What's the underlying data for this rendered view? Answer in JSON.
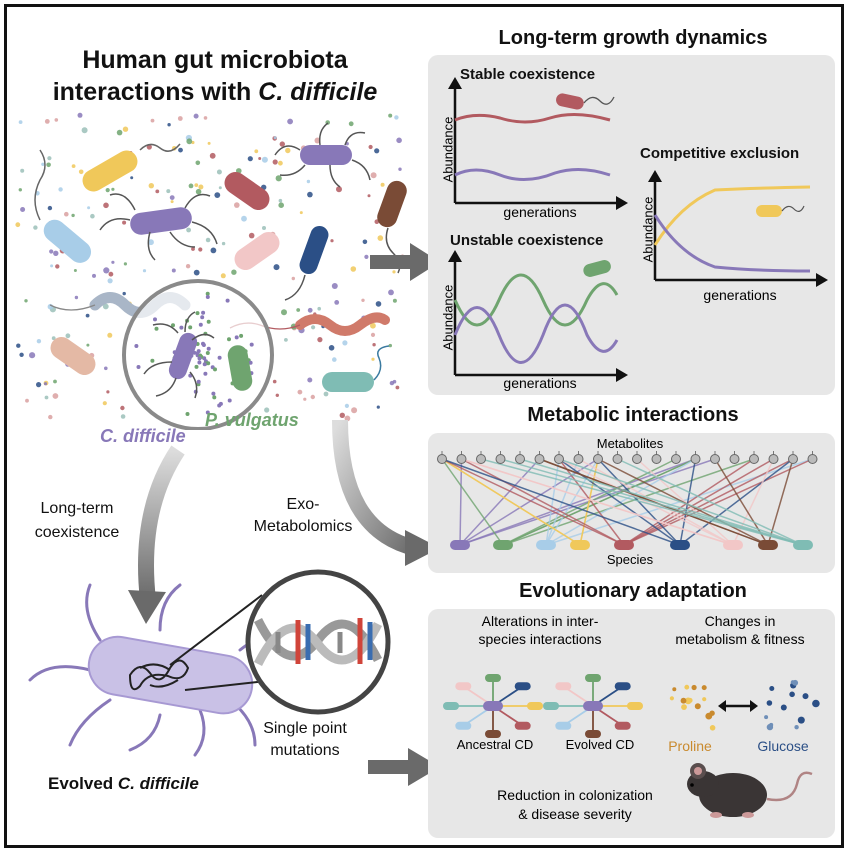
{
  "main_title": {
    "line1": "Human gut microbiota",
    "line2_prefix": "interactions with ",
    "line2_italic": "C. difficile"
  },
  "labels": {
    "c_difficile": "C. difficile",
    "p_vulgatus": "P. vulgatus",
    "long_term_coexistence_1": "Long-term",
    "long_term_coexistence_2": "coexistence",
    "exo_metabolomics_1": "Exo-",
    "exo_metabolomics_2": "Metabolomics",
    "evolved_prefix": "Evolved ",
    "evolved_italic": "C. difficile",
    "single_point_1": "Single point",
    "single_point_2": "mutations"
  },
  "growth_panel": {
    "title": "Long-term growth dynamics",
    "stable": {
      "title": "Stable coexistence",
      "ylabel": "Abundance",
      "xlabel": "generations"
    },
    "unstable": {
      "title": "Unstable coexistence",
      "ylabel": "Abundance",
      "xlabel": "generations"
    },
    "competitive": {
      "title": "Competitive exclusion",
      "ylabel": "Abundance",
      "xlabel": "generations"
    }
  },
  "metabolic_panel": {
    "title": "Metabolic interactions",
    "top_label": "Metabolites",
    "bottom_label": "Species"
  },
  "evolution_panel": {
    "title": "Evolutionary adaptation",
    "alterations_1": "Alterations in inter-",
    "alterations_2": "species interactions",
    "changes_1": "Changes in",
    "changes_2": "metabolism & fitness",
    "ancestral": "Ancestral CD",
    "evolved": "Evolved CD",
    "proline": "Proline",
    "glucose": "Glucose",
    "reduction_1": "Reduction in colonization",
    "reduction_2": "& disease severity"
  },
  "colors": {
    "cdiff_purple": "#8878b8",
    "pvulg_green": "#6fa46f",
    "red_species": "#b25a60",
    "yellow_species": "#f0c85a",
    "panel_gray": "#e7e7e7",
    "arrow_gray": "#666666",
    "proline_orange": "#c98a2e",
    "glucose_blue": "#2b4f86"
  }
}
